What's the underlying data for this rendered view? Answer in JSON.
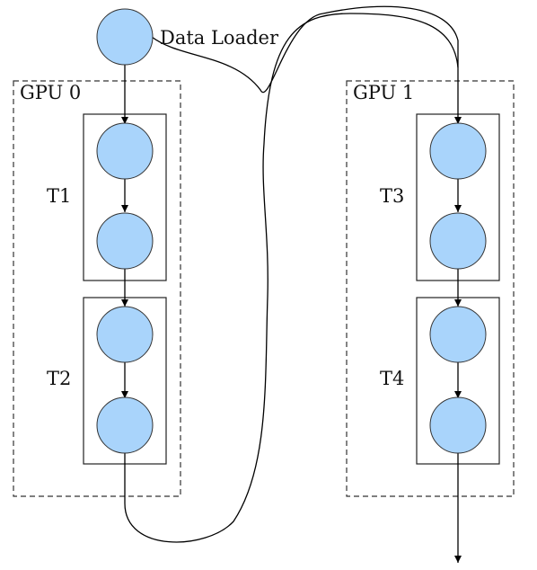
{
  "diagram": {
    "source_label": "Data Loader",
    "gpus": [
      {
        "label": "GPU 0",
        "stages": [
          "T1",
          "T2"
        ]
      },
      {
        "label": "GPU 1",
        "stages": [
          "T3",
          "T4"
        ]
      }
    ],
    "colors": {
      "node_fill": "#a9d4fb",
      "node_stroke": "#333333",
      "edge": "#000000",
      "gpu_border": "#333333"
    }
  }
}
